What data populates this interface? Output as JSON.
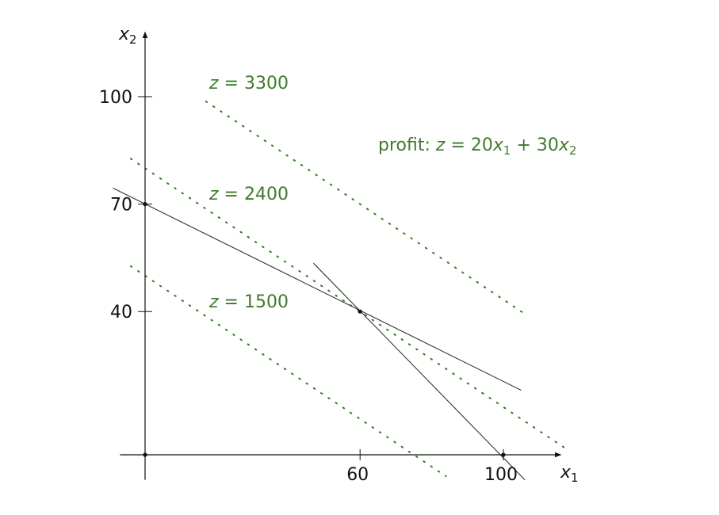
{
  "colors": {
    "axis": "#111111",
    "constraint": "#333333",
    "isoprofit": "#2e7d1f",
    "text_green": "#3f7a2e"
  },
  "axes": {
    "x_name": "x",
    "x_sub": "1",
    "y_name": "x",
    "y_sub": "2",
    "x_range": [
      -7,
      116
    ],
    "y_range": [
      -7,
      118
    ],
    "x_ticks": [
      {
        "value": 60,
        "label": "60"
      },
      {
        "value": 100,
        "label": "100"
      }
    ],
    "y_ticks": [
      {
        "value": 40,
        "label": "40"
      },
      {
        "value": 70,
        "label": "70"
      },
      {
        "value": 100,
        "label": "100"
      }
    ]
  },
  "profit_label": {
    "word": "profit:",
    "z": "z",
    "eq": " = 20",
    "x1": "x",
    "x1_sub": "1",
    "plus": " + 30",
    "x2": "x",
    "x2_sub": "2"
  },
  "chart_data": {
    "type": "line",
    "title": "",
    "constraints": [
      {
        "points": [
          [
            -9,
            74.5
          ],
          [
            105,
            18
          ]
        ]
      },
      {
        "points": [
          [
            47,
            53.5
          ],
          [
            106,
            -7
          ]
        ]
      }
    ],
    "isoprofit_lines": [
      {
        "z_label": "z",
        "value_label": " = 3300",
        "z": 3300,
        "x_range": [
          17,
          106
        ]
      },
      {
        "z_label": "z",
        "value_label": " = 2400",
        "z": 2400,
        "x_range": [
          -4,
          118
        ]
      },
      {
        "z_label": "z",
        "value_label": " = 1500",
        "z": 1500,
        "x_range": [
          -4,
          84
        ]
      }
    ],
    "points": [
      {
        "x": 0,
        "y": 0
      },
      {
        "x": 0,
        "y": 70
      },
      {
        "x": 60,
        "y": 40
      },
      {
        "x": 100,
        "y": 0
      }
    ]
  }
}
